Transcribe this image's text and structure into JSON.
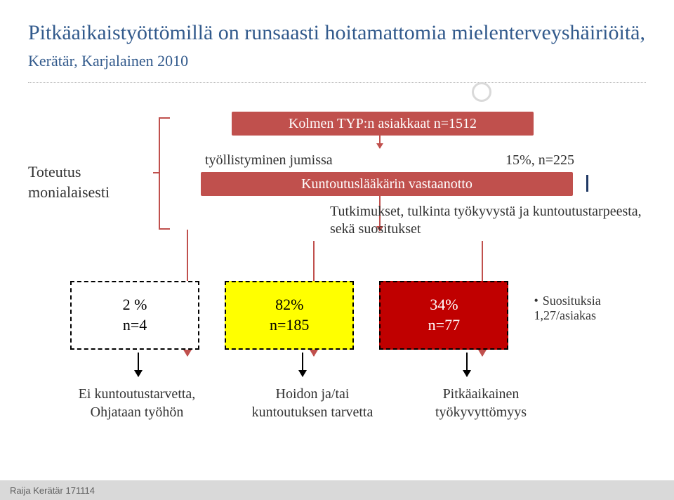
{
  "title_main": "Pitkäaikaistyöttömillä on runsaasti hoitamattomia mielenterveyshäiriöitä,",
  "title_sub": "Kerätär, Karjalainen 2010",
  "colors": {
    "title": "#325a8c",
    "accent": "#c0504d",
    "text": "#333333",
    "res1_bg": "#ffffff",
    "res2_bg": "#ffff00",
    "res3_bg": "#c00000",
    "res3_text": "#ffffff",
    "footer_bg": "#d9d9d9"
  },
  "left_label": "Toteutus monialaisesti",
  "top_box": "Kolmen TYP:n asiakkaat n=1512",
  "row2_left": "työllistyminen jumissa",
  "row2_right": "15%, n=225",
  "mid_box": "Kuntoutuslääkärin vastaanotto",
  "desc": "Tutkimukset, tulkinta työkyvystä ja kuntoutustarpeesta, sekä suositukset",
  "results": [
    {
      "pct": "2 %",
      "n": "n=4",
      "bg": "#ffffff",
      "text": "#000000"
    },
    {
      "pct": "82%",
      "n": "n=185",
      "bg": "#ffff00",
      "text": "#000000"
    },
    {
      "pct": "34%",
      "n": "n=77",
      "bg": "#c00000",
      "text": "#ffffff"
    }
  ],
  "bullet": "Suosituksia 1,27/asiakas",
  "labels": [
    "Ei kuntoutustarvetta, Ohjataan työhön",
    "Hoidon ja/tai kuntoutuksen tarvetta",
    "Pitkäaikainen työkyvyttömyys"
  ],
  "footer": "Raija Kerätär 171114"
}
